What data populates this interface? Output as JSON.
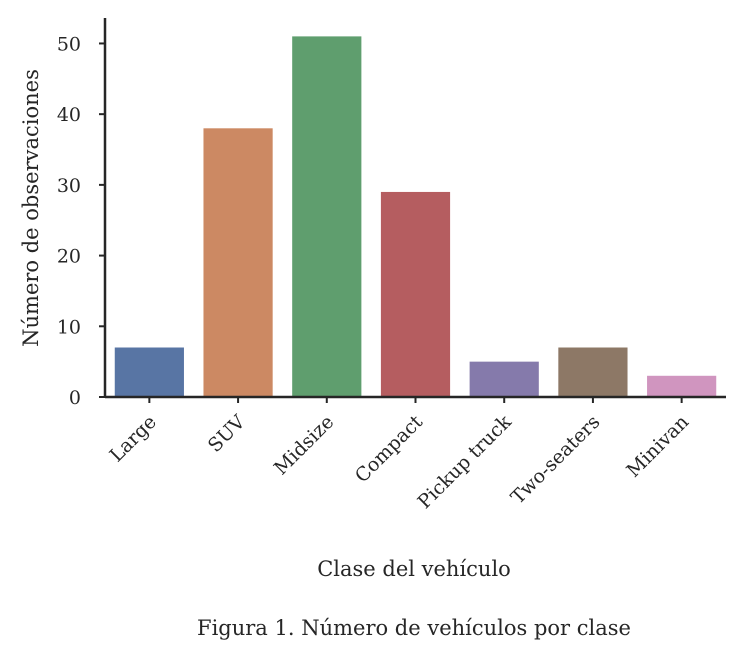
{
  "chart_data": {
    "type": "bar",
    "categories": [
      "Large",
      "SUV",
      "Midsize",
      "Compact",
      "Pickup truck",
      "Two-seaters",
      "Minivan"
    ],
    "values": [
      7,
      38,
      51,
      29,
      5,
      7,
      3
    ],
    "colors": [
      "#5875a4",
      "#cc8963",
      "#5f9e6e",
      "#b55d60",
      "#857aab",
      "#8d7866",
      "#d095bf"
    ],
    "xlabel": "Clase del vehículo",
    "ylabel": "Número de observaciones",
    "yticks": [
      0,
      10,
      20,
      30,
      40,
      50
    ],
    "ylim": [
      0,
      53.6
    ],
    "grid": false
  },
  "caption": "Figura 1. Número de vehículos por clase"
}
